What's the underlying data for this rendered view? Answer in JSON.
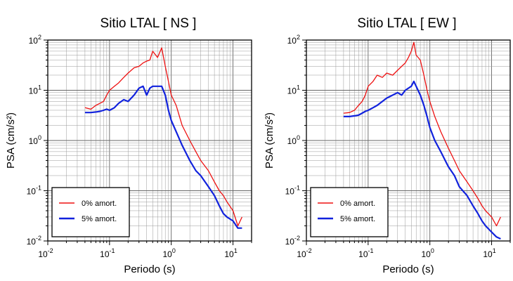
{
  "chart_data": [
    {
      "type": "line",
      "title": "Sitio LTAL [ NS ]",
      "xlabel": "Periodo (s)",
      "ylabel": "PSA (cm/s²)",
      "x_scale": "log",
      "y_scale": "log",
      "xlim": [
        0.01,
        20
      ],
      "ylim": [
        0.01,
        100
      ],
      "grid": true,
      "legend_position": "bottom-left",
      "x_ticks": [
        {
          "base": "10",
          "exp": "-2"
        },
        {
          "base": "10",
          "exp": "-1"
        },
        {
          "base": "10",
          "exp": "0"
        },
        {
          "base": "10",
          "exp": "1"
        }
      ],
      "y_ticks": [
        {
          "base": "10",
          "exp": "-2"
        },
        {
          "base": "10",
          "exp": "-1"
        },
        {
          "base": "10",
          "exp": "0"
        },
        {
          "base": "10",
          "exp": "1"
        },
        {
          "base": "10",
          "exp": "2"
        }
      ],
      "series": [
        {
          "name": "0% amort.",
          "color": "#ee1111",
          "x": [
            0.04,
            0.05,
            0.06,
            0.07,
            0.08,
            0.09,
            0.1,
            0.12,
            0.14,
            0.17,
            0.2,
            0.25,
            0.3,
            0.35,
            0.4,
            0.45,
            0.5,
            0.6,
            0.7,
            0.8,
            0.9,
            1.0,
            1.2,
            1.5,
            2.0,
            2.5,
            3.0,
            4.0,
            5.0,
            6.0,
            7.0,
            8.0,
            10.0,
            12.0,
            14.0
          ],
          "y": [
            4.5,
            4.2,
            5.0,
            5.5,
            6.0,
            8.0,
            10.0,
            12.0,
            14.0,
            18.0,
            22.0,
            28.0,
            30.0,
            35.0,
            38.0,
            40.0,
            60.0,
            45.0,
            70.0,
            30.0,
            15.0,
            8.0,
            5.0,
            2.0,
            1.0,
            0.6,
            0.4,
            0.25,
            0.15,
            0.1,
            0.08,
            0.06,
            0.04,
            0.02,
            0.03
          ]
        },
        {
          "name": "5% amort.",
          "color": "#1122dd",
          "x": [
            0.04,
            0.05,
            0.06,
            0.07,
            0.08,
            0.09,
            0.1,
            0.12,
            0.14,
            0.17,
            0.2,
            0.25,
            0.3,
            0.35,
            0.4,
            0.45,
            0.5,
            0.6,
            0.7,
            0.8,
            0.9,
            1.0,
            1.2,
            1.5,
            2.0,
            2.5,
            3.0,
            4.0,
            5.0,
            6.0,
            7.0,
            8.0,
            10.0,
            12.0,
            14.0
          ],
          "y": [
            3.6,
            3.6,
            3.7,
            3.8,
            4.0,
            4.2,
            4.0,
            4.5,
            5.5,
            6.5,
            6.0,
            8.0,
            11.0,
            12.0,
            8.0,
            11.0,
            12.0,
            12.0,
            12.0,
            8.0,
            4.0,
            2.5,
            1.5,
            0.8,
            0.4,
            0.25,
            0.2,
            0.12,
            0.08,
            0.05,
            0.035,
            0.03,
            0.025,
            0.018,
            0.018
          ]
        }
      ],
      "legend": [
        {
          "label": "0% amort.",
          "color": "#ee1111"
        },
        {
          "label": "5% amort.",
          "color": "#1122dd"
        }
      ]
    },
    {
      "type": "line",
      "title": "Sitio LTAL [ EW ]",
      "xlabel": "Periodo (s)",
      "ylabel": "PSA (cm/s²)",
      "x_scale": "log",
      "y_scale": "log",
      "xlim": [
        0.01,
        20
      ],
      "ylim": [
        0.01,
        100
      ],
      "grid": true,
      "legend_position": "bottom-left",
      "x_ticks": [
        {
          "base": "10",
          "exp": "-2"
        },
        {
          "base": "10",
          "exp": "-1"
        },
        {
          "base": "10",
          "exp": "0"
        },
        {
          "base": "10",
          "exp": "1"
        }
      ],
      "y_ticks": [
        {
          "base": "10",
          "exp": "-2"
        },
        {
          "base": "10",
          "exp": "-1"
        },
        {
          "base": "10",
          "exp": "0"
        },
        {
          "base": "10",
          "exp": "1"
        },
        {
          "base": "10",
          "exp": "2"
        }
      ],
      "series": [
        {
          "name": "0% amort.",
          "color": "#ee1111",
          "x": [
            0.04,
            0.05,
            0.06,
            0.07,
            0.08,
            0.09,
            0.1,
            0.12,
            0.14,
            0.17,
            0.2,
            0.25,
            0.3,
            0.35,
            0.4,
            0.45,
            0.5,
            0.55,
            0.6,
            0.7,
            0.8,
            0.9,
            1.0,
            1.2,
            1.5,
            2.0,
            2.5,
            3.0,
            4.0,
            5.0,
            6.0,
            7.0,
            8.0,
            10.0,
            12.0,
            14.0
          ],
          "y": [
            3.5,
            3.6,
            4.0,
            5.0,
            6.0,
            8.0,
            12.0,
            15.0,
            20.0,
            18.0,
            22.0,
            20.0,
            25.0,
            30.0,
            35.0,
            45.0,
            60.0,
            90.0,
            50.0,
            40.0,
            20.0,
            10.0,
            6.0,
            3.0,
            1.5,
            0.7,
            0.4,
            0.25,
            0.15,
            0.1,
            0.07,
            0.05,
            0.04,
            0.03,
            0.02,
            0.03
          ]
        },
        {
          "name": "5% amort.",
          "color": "#1122dd",
          "x": [
            0.04,
            0.05,
            0.06,
            0.07,
            0.08,
            0.09,
            0.1,
            0.12,
            0.14,
            0.17,
            0.2,
            0.25,
            0.3,
            0.35,
            0.4,
            0.45,
            0.5,
            0.55,
            0.6,
            0.7,
            0.8,
            0.9,
            1.0,
            1.2,
            1.5,
            2.0,
            2.5,
            3.0,
            4.0,
            5.0,
            6.0,
            7.0,
            8.0,
            10.0,
            12.0,
            14.0
          ],
          "y": [
            3.0,
            3.0,
            3.1,
            3.2,
            3.5,
            3.8,
            4.0,
            4.5,
            5.0,
            6.0,
            7.0,
            8.0,
            9.0,
            8.0,
            10.0,
            11.0,
            12.0,
            15.0,
            12.0,
            8.0,
            5.0,
            3.0,
            1.8,
            1.0,
            0.6,
            0.3,
            0.2,
            0.12,
            0.08,
            0.05,
            0.035,
            0.025,
            0.02,
            0.015,
            0.012,
            0.011
          ]
        }
      ],
      "legend": [
        {
          "label": "0% amort.",
          "color": "#ee1111"
        },
        {
          "label": "5% amort.",
          "color": "#1122dd"
        }
      ]
    }
  ]
}
